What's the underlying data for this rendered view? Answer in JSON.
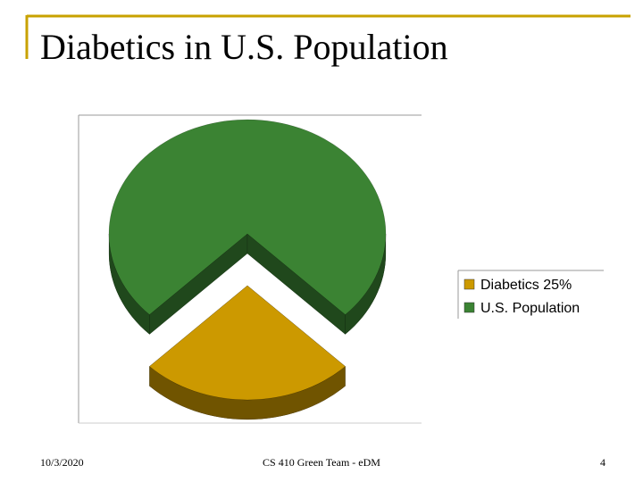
{
  "chart_data": {
    "type": "pie",
    "title": "Diabetics in U.S. Population",
    "categories": [
      "Diabetics 25%",
      "U.S. Population"
    ],
    "values": [
      25,
      75
    ],
    "colors": [
      "#cc9900",
      "#3b8333"
    ],
    "legend": "right"
  },
  "footer": {
    "date": "10/3/2020",
    "center": "CS 410 Green Team - eDM",
    "page": "4"
  }
}
